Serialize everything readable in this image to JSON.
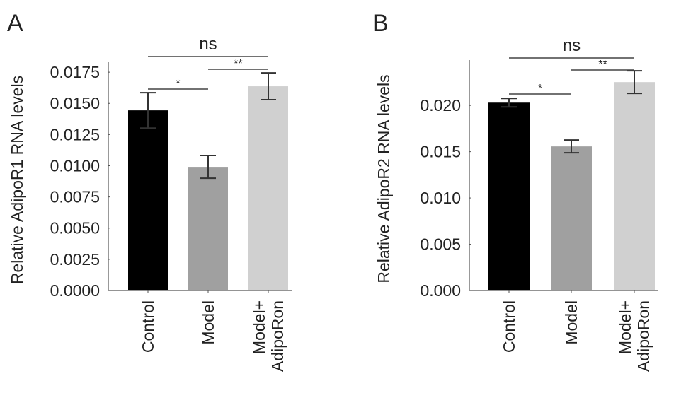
{
  "chart_data": [
    {
      "panel": "A",
      "type": "bar",
      "categories": [
        "Control",
        "Model",
        "Model+\nAdipoRon"
      ],
      "values": [
        0.01444,
        0.00991,
        0.01637
      ],
      "errors": [
        0.00142,
        0.00091,
        0.00107
      ],
      "colors": [
        "#000000",
        "#a0a0a0",
        "#d0d0d0"
      ],
      "ylabel": "Relative AdipoR1 RNA levels",
      "ylim": [
        0,
        0.0183
      ],
      "yticks": [
        "0.0000",
        "0.0025",
        "0.0050",
        "0.0075",
        "0.0100",
        "0.0125",
        "0.0150",
        "0.0175"
      ],
      "ytick_values": [
        0,
        0.0025,
        0.005,
        0.0075,
        0.01,
        0.0125,
        0.015,
        0.0175
      ],
      "significance": [
        {
          "from": 0,
          "to": 1,
          "label": "*"
        },
        {
          "from": 1,
          "to": 2,
          "label": "**"
        },
        {
          "from": 0,
          "to": 2,
          "label": "ns"
        }
      ],
      "grid": false
    },
    {
      "panel": "B",
      "type": "bar",
      "categories": [
        "Control",
        "Model",
        "Model+\nAdipoRon"
      ],
      "values": [
        0.0203,
        0.01557,
        0.02252
      ],
      "errors": [
        0.00046,
        0.00069,
        0.00122
      ],
      "colors": [
        "#000000",
        "#a0a0a0",
        "#d0d0d0"
      ],
      "ylabel": "Relative AdipoR2 RNA levels",
      "ylim": [
        0,
        0.0249
      ],
      "yticks": [
        "0.000",
        "0.005",
        "0.010",
        "0.015",
        "0.020"
      ],
      "ytick_values": [
        0,
        0.005,
        0.01,
        0.015,
        0.02
      ],
      "significance": [
        {
          "from": 0,
          "to": 1,
          "label": "*"
        },
        {
          "from": 1,
          "to": 2,
          "label": "**"
        },
        {
          "from": 0,
          "to": 2,
          "label": "ns"
        }
      ],
      "grid": false
    }
  ]
}
